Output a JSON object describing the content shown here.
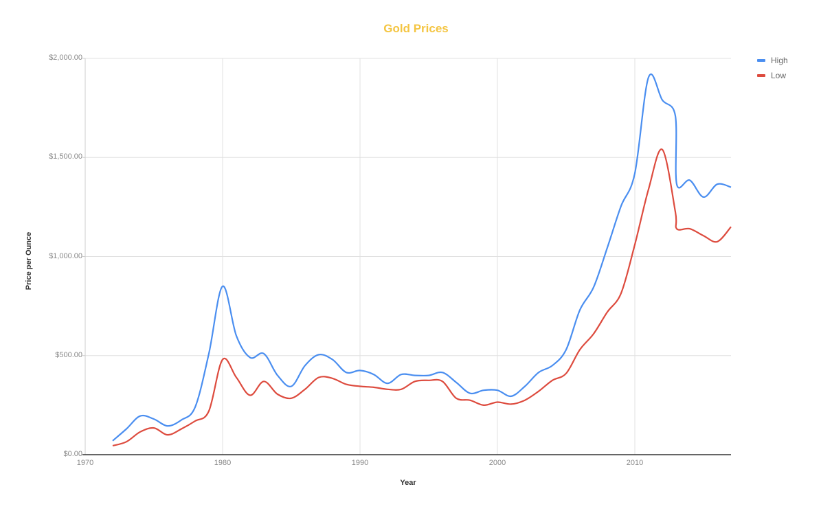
{
  "chart": {
    "title": "Gold Prices",
    "title_color": "#f4c542",
    "xlabel": "Year",
    "ylabel": "Price per Ounce",
    "y_ticks": [
      "$0.00",
      "$500.00",
      "$1,000.00",
      "$1,500.00",
      "$2,000.00"
    ],
    "x_ticks": [
      "1970",
      "1980",
      "1990",
      "2000",
      "2010"
    ],
    "legend": [
      {
        "label": "High",
        "color": "#4a8ef0"
      },
      {
        "label": "Low",
        "color": "#dd4b3e"
      }
    ]
  },
  "chart_data": {
    "type": "line",
    "title": "Gold Prices",
    "xlabel": "Year",
    "ylabel": "Price per Ounce",
    "xlim": [
      1970,
      2017
    ],
    "ylim": [
      0,
      2000
    ],
    "grid": true,
    "legend_position": "right",
    "x": [
      1972,
      1973,
      1974,
      1975,
      1976,
      1977,
      1978,
      1979,
      1980,
      1981,
      1982,
      1983,
      1984,
      1985,
      1986,
      1987,
      1988,
      1989,
      1990,
      1991,
      1992,
      1993,
      1994,
      1995,
      1996,
      1997,
      1998,
      1999,
      2000,
      2001,
      2002,
      2003,
      2004,
      2005,
      2006,
      2007,
      2008,
      2009,
      2010,
      2011,
      2012,
      2012.95,
      2013.05,
      2014,
      2015,
      2016,
      2017
    ],
    "series": [
      {
        "name": "High",
        "color": "#4a8ef0",
        "values": [
          70,
          130,
          195,
          180,
          145,
          175,
          240,
          510,
          850,
          600,
          490,
          510,
          400,
          345,
          450,
          505,
          480,
          415,
          425,
          405,
          360,
          405,
          400,
          400,
          415,
          365,
          310,
          325,
          325,
          295,
          345,
          415,
          450,
          530,
          730,
          845,
          1045,
          1255,
          1420,
          1905,
          1790,
          1710,
          1365,
          1385,
          1300,
          1365,
          1350
        ]
      },
      {
        "name": "Low",
        "color": "#dd4b3e",
        "values": [
          45,
          65,
          115,
          135,
          100,
          130,
          170,
          220,
          480,
          390,
          300,
          370,
          305,
          285,
          330,
          390,
          385,
          355,
          345,
          340,
          330,
          330,
          370,
          375,
          370,
          285,
          275,
          250,
          265,
          255,
          275,
          320,
          375,
          410,
          530,
          610,
          720,
          815,
          1060,
          1340,
          1540,
          1225,
          1140,
          1140,
          1105,
          1075,
          1150
        ]
      }
    ]
  }
}
